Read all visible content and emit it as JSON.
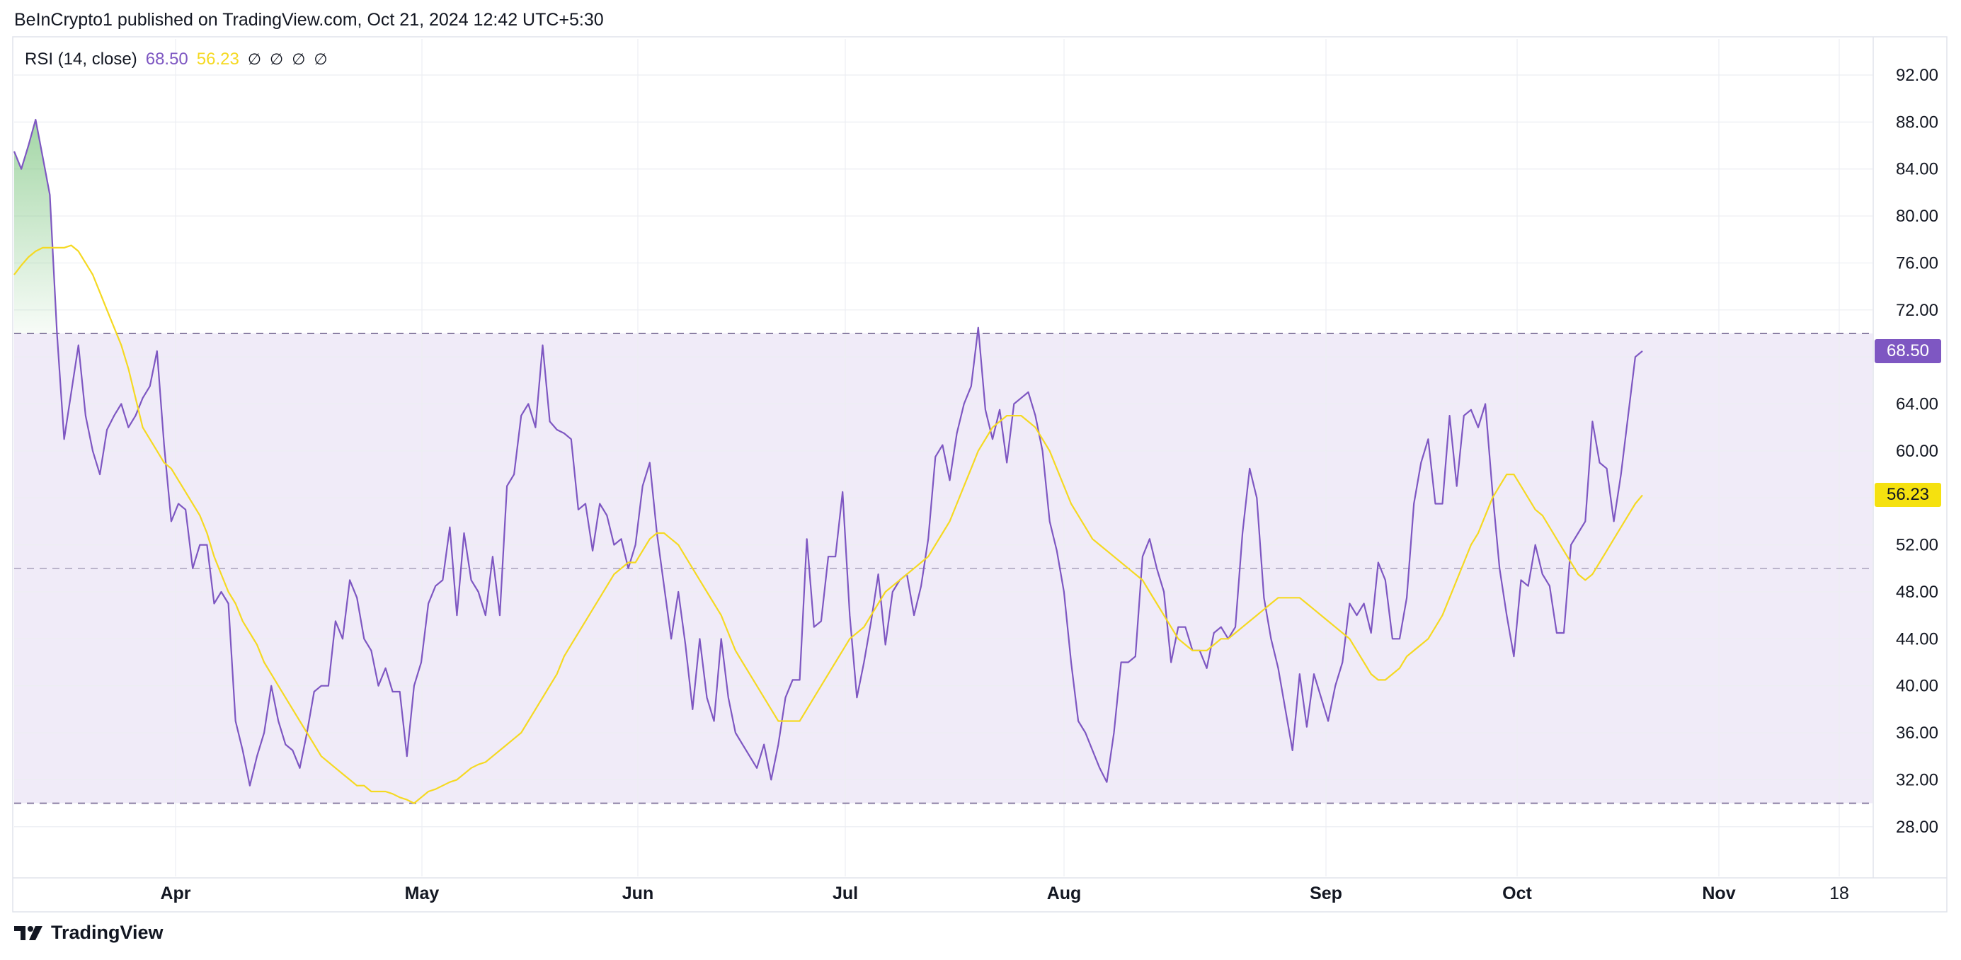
{
  "header": {
    "text": "BeInCrypto1 published on TradingView.com, Oct 21, 2024 12:42 UTC+5:30"
  },
  "legend": {
    "label": "RSI (14, close)",
    "rsi_value": "68.50",
    "ma_value": "56.23",
    "empty_values": [
      "∅",
      "∅",
      "∅",
      "∅"
    ]
  },
  "footer": {
    "brand": "TradingView",
    "logo_icon": "tradingview-logo-icon"
  },
  "colors": {
    "rsi": "#7e57c2",
    "ma": "#f5d922",
    "band_fill": "#f0ebf8",
    "overbought_fill": "#66bb6a"
  },
  "badges": {
    "rsi": "68.50",
    "ma": "56.23"
  },
  "chart_data": {
    "type": "line",
    "ylim": [
      25,
      95
    ],
    "y_ticks": [
      "92.00",
      "88.00",
      "84.00",
      "80.00",
      "76.00",
      "72.00",
      "64.00",
      "60.00",
      "56.00",
      "52.00",
      "48.00",
      "44.00",
      "40.00",
      "36.00",
      "32.00",
      "28.00"
    ],
    "x_ticks": [
      "Apr",
      "May",
      "Jun",
      "Jul",
      "Aug",
      "Sep",
      "Oct",
      "Nov",
      "18"
    ],
    "bands": {
      "upper": 70,
      "middle": 50,
      "lower": 30
    },
    "grid": true,
    "series": [
      {
        "values": [
          85.5,
          84.0,
          86.0,
          88.2,
          85.0,
          81.8,
          70.0,
          61.0,
          65.0,
          69.0,
          63.0,
          60.0,
          58.0,
          61.8,
          63.0,
          64.0,
          62.0,
          63.0,
          64.5,
          65.5,
          68.5,
          60.5,
          54.0,
          55.5,
          55.0,
          50.0,
          52.0,
          52.0,
          47.0,
          48.0,
          47.0,
          37.0,
          34.5,
          31.5,
          34.0,
          36.0,
          40.0,
          37.0,
          35.0,
          34.5,
          33.0,
          36.0,
          39.5,
          40.0,
          40.0,
          45.5,
          44.0,
          49.0,
          47.5,
          44.0,
          43.0,
          40.0,
          41.5,
          39.5,
          39.5,
          34.0,
          40.0,
          42.0,
          47.0,
          48.5,
          49.0,
          53.5,
          46.0,
          53.0,
          49.0,
          48.0,
          46.0,
          51.0,
          46.0,
          57.0,
          58.0,
          63.0,
          64.0,
          62.0,
          69.0,
          62.5,
          61.8,
          61.5,
          61.0,
          55.0,
          55.5,
          51.5,
          55.5,
          54.5,
          52.0,
          52.5,
          50.0,
          52.0,
          57.0,
          59.0,
          53.0,
          48.5,
          44.0,
          48.0,
          43.5,
          38.0,
          44.0,
          39.0,
          37.0,
          44.0,
          39.0,
          36.0,
          35.0,
          34.0,
          33.0,
          35.0,
          32.0,
          35.0,
          39.0,
          40.5,
          40.5,
          52.5,
          45.0,
          45.5,
          51.0,
          51.0,
          56.5,
          46.0,
          39.0,
          42.0,
          45.5,
          49.5,
          43.5,
          48.0,
          49.0,
          49.5,
          46.0,
          48.5,
          52.5,
          59.5,
          60.5,
          57.5,
          61.5,
          64.0,
          65.5,
          70.5,
          63.5,
          61.0,
          63.5,
          59.0,
          64.0,
          64.5,
          65.0,
          63.0,
          60.0,
          54.0,
          51.5,
          48.0,
          42.0,
          37.0,
          36.0,
          34.5,
          33.0,
          31.8,
          36.0,
          42.0,
          42.0,
          42.5,
          51.0,
          52.5,
          50.0,
          48.0,
          42.0,
          45.0,
          45.0,
          43.0,
          43.0,
          41.5,
          44.5,
          45.0,
          44.0,
          45.0,
          53.0,
          58.5,
          56.0,
          47.5,
          44.0,
          41.5,
          38.0,
          34.5,
          41.0,
          36.5,
          41.0,
          39.0,
          37.0,
          40.0,
          42.0,
          47.0,
          46.0,
          47.0,
          44.5,
          50.5,
          49.0,
          44.0,
          44.0,
          47.5,
          55.5,
          59.0,
          61.0,
          55.5,
          55.5,
          63.0,
          57.0,
          63.0,
          63.5,
          62.0,
          64.0,
          56.5,
          50.0,
          46.0,
          42.5,
          49.0,
          48.5,
          52.0,
          49.5,
          48.5,
          44.5,
          44.5,
          52.0,
          53.0,
          54.0,
          62.5,
          59.0,
          58.5,
          54.0,
          58.0,
          63.0,
          68.0,
          68.5
        ]
      },
      {
        "values": [
          75.0,
          75.8,
          76.5,
          77.0,
          77.3,
          77.3,
          77.3,
          77.3,
          77.5,
          77.0,
          76.0,
          75.0,
          73.5,
          72.0,
          70.5,
          69.0,
          67.0,
          64.5,
          62.0,
          61.0,
          60.0,
          59.0,
          58.5,
          57.5,
          56.5,
          55.5,
          54.5,
          53.0,
          51.0,
          49.5,
          48.0,
          47.0,
          45.5,
          44.5,
          43.5,
          42.0,
          41.0,
          40.0,
          39.0,
          38.0,
          37.0,
          36.0,
          35.0,
          34.0,
          33.5,
          33.0,
          32.5,
          32.0,
          31.5,
          31.5,
          31.0,
          31.0,
          31.0,
          30.8,
          30.5,
          30.3,
          30.0,
          30.5,
          31.0,
          31.2,
          31.5,
          31.8,
          32.0,
          32.5,
          33.0,
          33.3,
          33.5,
          34.0,
          34.5,
          35.0,
          35.5,
          36.0,
          37.0,
          38.0,
          39.0,
          40.0,
          41.0,
          42.5,
          43.5,
          44.5,
          45.5,
          46.5,
          47.5,
          48.5,
          49.5,
          50.0,
          50.5,
          50.5,
          51.5,
          52.5,
          53.0,
          53.0,
          52.5,
          52.0,
          51.0,
          50.0,
          49.0,
          48.0,
          47.0,
          46.0,
          44.5,
          43.0,
          42.0,
          41.0,
          40.0,
          39.0,
          38.0,
          37.0,
          37.0,
          37.0,
          37.0,
          38.0,
          39.0,
          40.0,
          41.0,
          42.0,
          43.0,
          44.0,
          44.5,
          45.0,
          46.0,
          47.0,
          48.0,
          48.5,
          49.0,
          49.5,
          50.0,
          50.5,
          51.0,
          52.0,
          53.0,
          54.0,
          55.5,
          57.0,
          58.5,
          60.0,
          61.0,
          62.0,
          62.5,
          63.0,
          63.0,
          63.0,
          62.5,
          62.0,
          61.0,
          60.0,
          58.5,
          57.0,
          55.5,
          54.5,
          53.5,
          52.5,
          52.0,
          51.5,
          51.0,
          50.5,
          50.0,
          49.5,
          49.0,
          48.0,
          47.0,
          46.0,
          45.0,
          44.0,
          43.5,
          43.0,
          43.0,
          43.0,
          43.5,
          44.0,
          44.0,
          44.5,
          45.0,
          45.5,
          46.0,
          46.5,
          47.0,
          47.5,
          47.5,
          47.5,
          47.5,
          47.0,
          46.5,
          46.0,
          45.5,
          45.0,
          44.5,
          44.0,
          43.0,
          42.0,
          41.0,
          40.5,
          40.5,
          41.0,
          41.5,
          42.5,
          43.0,
          43.5,
          44.0,
          45.0,
          46.0,
          47.5,
          49.0,
          50.5,
          52.0,
          53.0,
          54.5,
          56.0,
          57.0,
          58.0,
          58.0,
          57.0,
          56.0,
          55.0,
          54.5,
          53.5,
          52.5,
          51.5,
          50.5,
          49.5,
          49.0,
          49.5,
          50.5,
          51.5,
          52.5,
          53.5,
          54.5,
          55.5,
          56.23
        ]
      }
    ]
  }
}
